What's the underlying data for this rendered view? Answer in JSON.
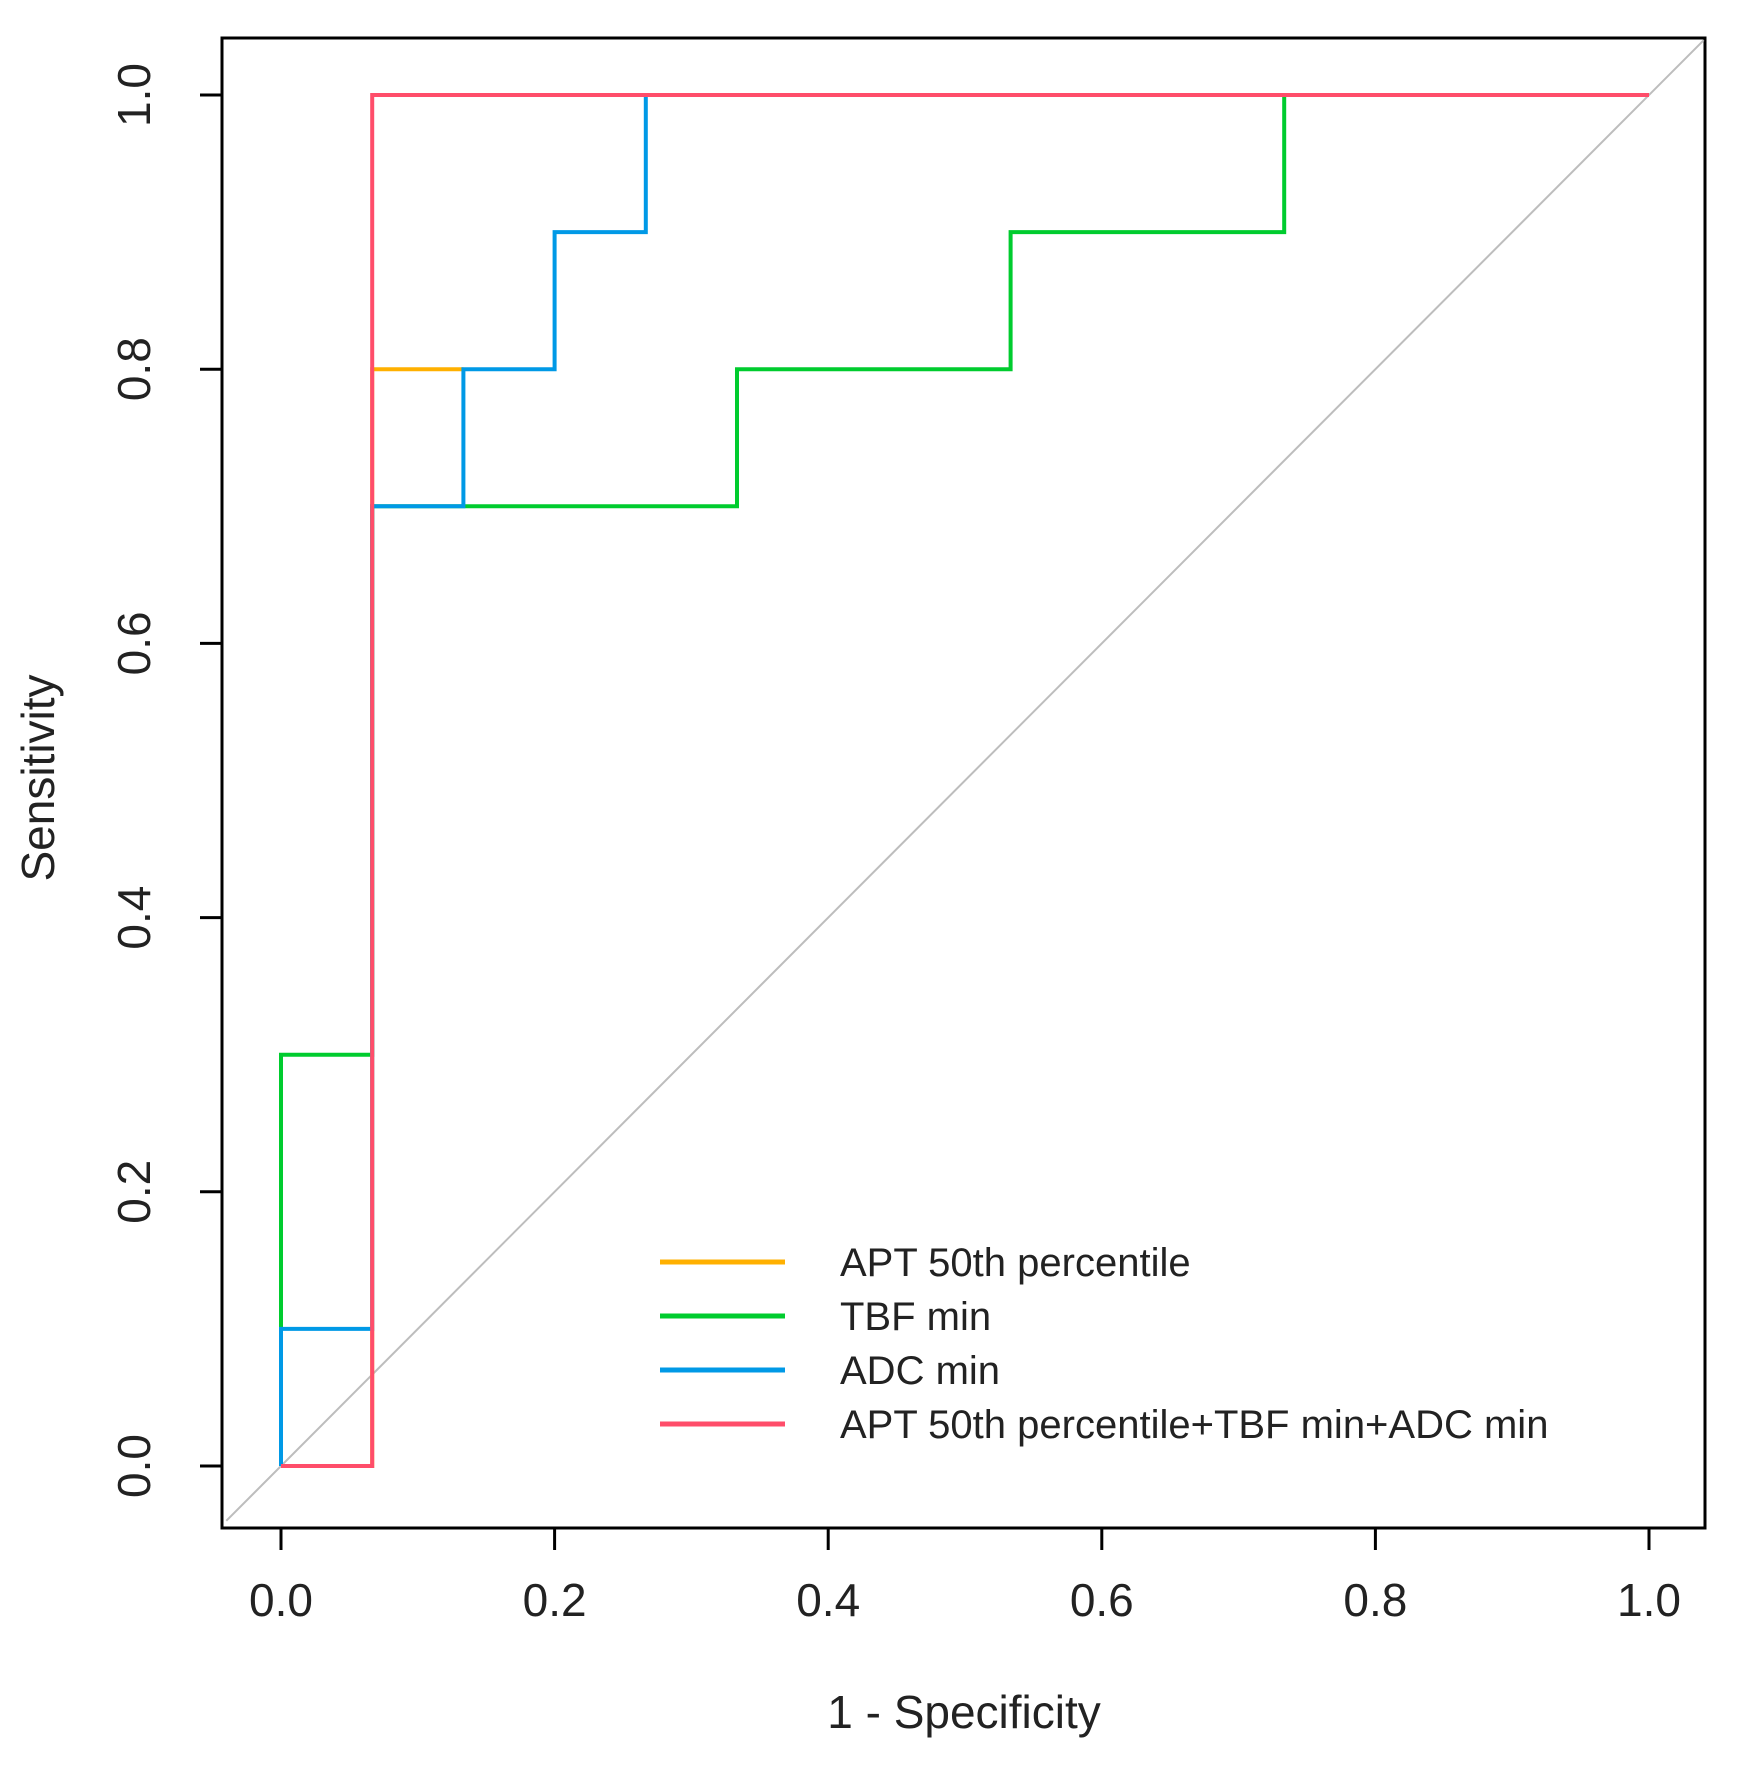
{
  "chart_data": {
    "type": "line",
    "title": "",
    "xlabel": "1 - Specificity",
    "ylabel": "Sensitivity",
    "xlim": [
      0.0,
      1.0
    ],
    "ylim": [
      0.0,
      1.0
    ],
    "xticks": [
      "0.0",
      "0.2",
      "0.4",
      "0.6",
      "0.8",
      "1.0"
    ],
    "yticks": [
      "0.0",
      "0.2",
      "0.4",
      "0.6",
      "0.8",
      "1.0"
    ],
    "grid": false,
    "legend_position": "bottom-right",
    "reference_line": {
      "x": [
        0,
        1
      ],
      "y": [
        0,
        1
      ],
      "color": "#bdbdbd"
    },
    "series": [
      {
        "name": "APT 50th percentile",
        "color": "#ffb000",
        "x": [
          0.0,
          0.0667,
          0.0667,
          0.1333,
          0.1333
        ],
        "y": [
          0.0,
          0.0,
          0.8,
          0.8,
          0.8
        ]
      },
      {
        "name": "TBF min",
        "color": "#00cc2e",
        "x": [
          0.0,
          0.0,
          0.0,
          0.0667,
          0.0667,
          0.3333,
          0.3333,
          0.5333,
          0.5333,
          0.7333,
          0.7333,
          1.0
        ],
        "y": [
          0.0,
          0.1,
          0.3,
          0.3,
          0.7,
          0.7,
          0.8,
          0.8,
          0.9,
          0.9,
          1.0,
          1.0
        ]
      },
      {
        "name": "ADC min",
        "color": "#0099e6",
        "x": [
          0.0,
          0.0,
          0.0667,
          0.0667,
          0.1333,
          0.1333,
          0.2,
          0.2,
          0.2667,
          0.2667,
          1.0
        ],
        "y": [
          0.0,
          0.1,
          0.1,
          0.7,
          0.7,
          0.8,
          0.8,
          0.9,
          0.9,
          1.0,
          1.0
        ]
      },
      {
        "name": "APT 50th percentile+TBF min+ADC min",
        "color": "#ff4d6a",
        "x": [
          0.0,
          0.0667,
          0.0667,
          1.0
        ],
        "y": [
          0.0,
          0.0,
          1.0,
          1.0
        ]
      }
    ]
  }
}
